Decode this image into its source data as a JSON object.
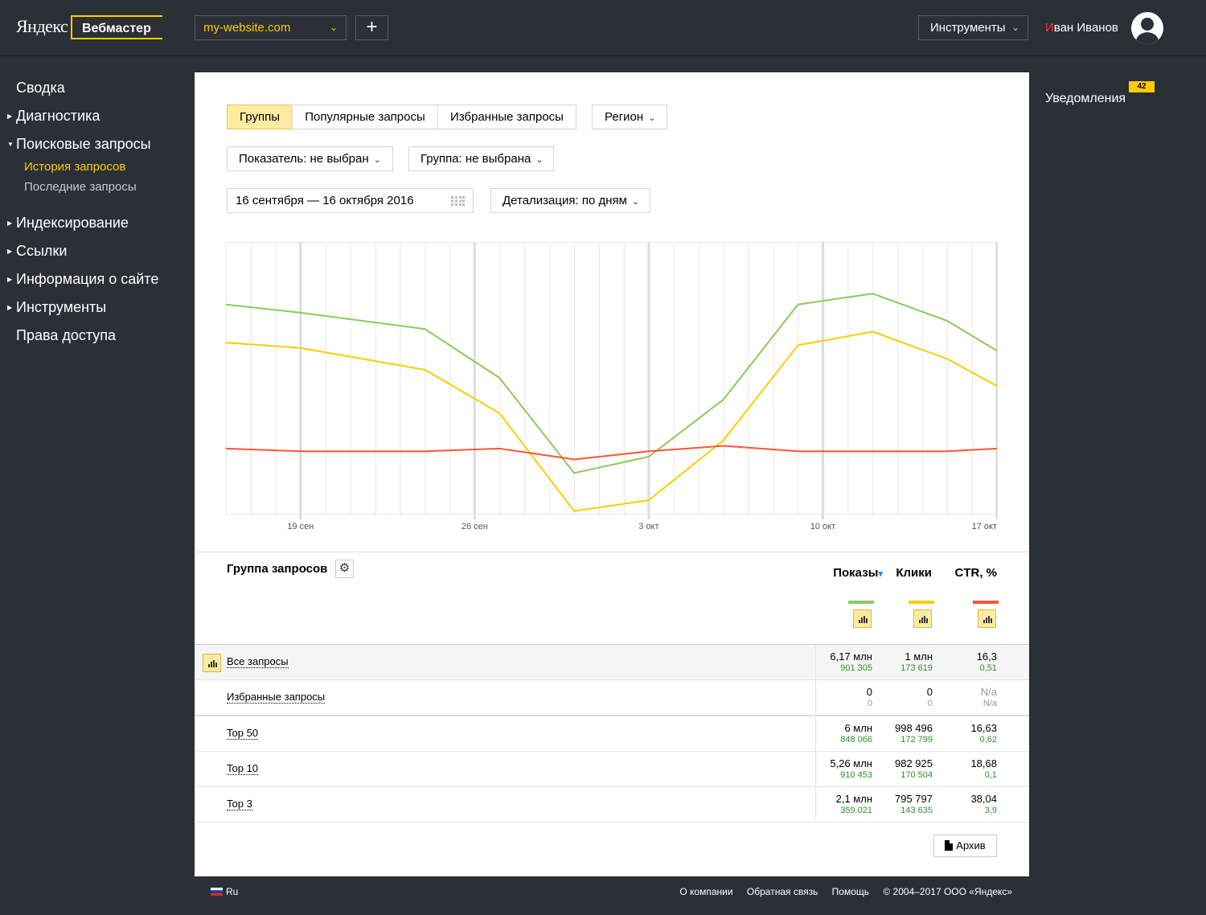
{
  "header": {
    "logo": "Яндекс",
    "service": "Вебмастер",
    "site": "my-website.com",
    "add_label": "+",
    "tools_label": "Инструменты",
    "user_first_letter": "И",
    "user_rest": "ван Иванов"
  },
  "sidebar": {
    "items": [
      {
        "label": "Сводка"
      },
      {
        "label": "Диагностика"
      },
      {
        "label": "Поисковые запросы"
      },
      {
        "label": "Индексирование"
      },
      {
        "label": "Ссылки"
      },
      {
        "label": "Информация о сайте"
      },
      {
        "label": "Инструменты"
      },
      {
        "label": "Права доступа"
      }
    ],
    "subitems": [
      {
        "label": "История запросов",
        "active": true
      },
      {
        "label": "Последние запросы",
        "active": false
      }
    ]
  },
  "filters": {
    "tabs": [
      "Группы",
      "Популярные запросы",
      "Избранные запросы"
    ],
    "region": "Регион",
    "indicator": "Показатель: не выбран",
    "group": "Группа: не выбрана",
    "date_range": "16 сентября — 16 октября 2016",
    "detail": "Детализация: по дням"
  },
  "chart_data": {
    "type": "line",
    "x_tick_labels": [
      "19 сен",
      "26 сен",
      "3 окт",
      "10 окт",
      "17 окт"
    ],
    "x": [
      "16 сен",
      "19 сен",
      "24 сен",
      "27 сен",
      "30 сен",
      "3 окт",
      "6 окт",
      "9 окт",
      "12 окт",
      "15 окт",
      "17 окт"
    ],
    "series": [
      {
        "color": "#8dc95b",
        "values": [
          77,
          74,
          68,
          50,
          15,
          21,
          42,
          77,
          81,
          71,
          60
        ]
      },
      {
        "color": "#ffcc00",
        "values": [
          63,
          61,
          53,
          37,
          1,
          5,
          27,
          62,
          67,
          57,
          47
        ]
      },
      {
        "color": "#ff5533",
        "values": [
          24,
          23,
          23,
          24,
          20,
          23,
          25,
          23,
          23,
          23,
          24
        ]
      }
    ],
    "ylim": [
      0,
      100
    ],
    "grid": true,
    "legend": "none"
  },
  "table": {
    "title": "Группа запросов",
    "columns": [
      {
        "label": "Показы",
        "color": "#8dc95b",
        "sorted": true
      },
      {
        "label": "Клики",
        "color": "#ffcc00",
        "sorted": false
      },
      {
        "label": "CTR, %",
        "color": "#ff5533",
        "sorted": false
      }
    ],
    "sort_marker": "▾",
    "rows": [
      {
        "label": "Все запросы",
        "cells": [
          [
            "6,17 млн",
            "901 305"
          ],
          [
            "1 млн",
            "173 619"
          ],
          [
            "16,3",
            "0,51"
          ]
        ]
      },
      {
        "label": "Избранные запросы",
        "cells": [
          [
            "0",
            "0"
          ],
          [
            "0",
            "0"
          ],
          [
            "N/a",
            "N/a"
          ]
        ]
      },
      {
        "label": "Top 50",
        "cells": [
          [
            "6 млн",
            "848 066"
          ],
          [
            "998 496",
            "172 799"
          ],
          [
            "16,63",
            "0,62"
          ]
        ]
      },
      {
        "label": "Top 10",
        "cells": [
          [
            "5,26 млн",
            "910 453"
          ],
          [
            "982 925",
            "170 504"
          ],
          [
            "18,68",
            "0,1"
          ]
        ]
      },
      {
        "label": "Top 3",
        "cells": [
          [
            "2,1 млн",
            "359 021"
          ],
          [
            "795 797",
            "143 635"
          ],
          [
            "38,04",
            "3,9"
          ]
        ]
      }
    ],
    "archive_label": "Архив"
  },
  "notifications": {
    "label": "Уведомления",
    "count": "42"
  },
  "footer": {
    "lang": "Ru",
    "links": [
      "О компании",
      "Обратная связь",
      "Помощь",
      "© 2004–2017  ООО «Яндекс»"
    ]
  }
}
